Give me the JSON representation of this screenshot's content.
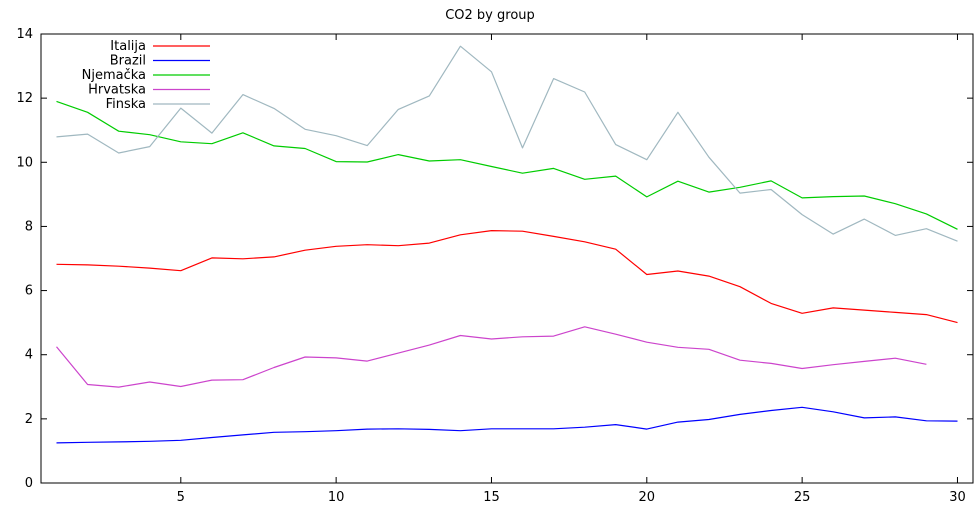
{
  "chart_data": {
    "type": "line",
    "title": "CO2 by group",
    "xlabel": "",
    "ylabel": "",
    "xlim": [
      0.5,
      30.5
    ],
    "ylim": [
      0,
      14
    ],
    "x_ticks": [
      "5",
      "10",
      "15",
      "20",
      "25",
      "30"
    ],
    "y_ticks": [
      "0",
      "2",
      "4",
      "6",
      "8",
      "10",
      "12",
      "14"
    ],
    "grid": false,
    "legend_position": "top-left",
    "x": [
      1,
      2,
      3,
      4,
      5,
      6,
      7,
      8,
      9,
      10,
      11,
      12,
      13,
      14,
      15,
      16,
      17,
      18,
      19,
      20,
      21,
      22,
      23,
      24,
      25,
      26,
      27,
      28,
      29,
      30
    ],
    "series": [
      {
        "name": "Italija",
        "color": "#ff0000",
        "values": [
          6.82,
          6.8,
          6.76,
          6.7,
          6.62,
          7.02,
          6.99,
          7.05,
          7.26,
          7.38,
          7.43,
          7.4,
          7.48,
          7.74,
          7.87,
          7.85,
          7.69,
          7.52,
          7.29,
          6.5,
          6.61,
          6.45,
          6.12,
          5.6,
          5.29,
          5.46,
          5.39,
          5.32,
          5.25,
          5.0
        ]
      },
      {
        "name": "Brazil",
        "color": "#0000ff",
        "values": [
          1.25,
          1.27,
          1.28,
          1.3,
          1.33,
          1.42,
          1.5,
          1.58,
          1.6,
          1.63,
          1.68,
          1.69,
          1.67,
          1.63,
          1.69,
          1.69,
          1.69,
          1.74,
          1.82,
          1.68,
          1.9,
          1.98,
          2.14,
          2.26,
          2.36,
          2.22,
          2.03,
          2.06,
          1.94,
          1.93
        ]
      },
      {
        "name": "Njemačka",
        "color": "#00cc00",
        "values": [
          11.9,
          11.56,
          10.97,
          10.86,
          10.64,
          10.58,
          10.92,
          10.51,
          10.43,
          10.02,
          10.01,
          10.24,
          10.04,
          10.08,
          9.87,
          9.66,
          9.81,
          9.47,
          9.57,
          8.92,
          9.41,
          9.07,
          9.22,
          9.42,
          8.89,
          8.93,
          8.95,
          8.71,
          8.39,
          7.91
        ]
      },
      {
        "name": "Hrvatska",
        "color": "#cc44cc",
        "values": [
          4.25,
          3.07,
          2.99,
          3.15,
          3.01,
          3.21,
          3.22,
          3.6,
          3.93,
          3.9,
          3.8,
          4.05,
          4.3,
          4.6,
          4.49,
          4.56,
          4.58,
          4.87,
          4.64,
          4.39,
          4.23,
          4.17,
          3.83,
          3.73,
          3.57,
          3.69,
          3.79,
          3.89,
          3.7,
          null
        ]
      },
      {
        "name": "Finska",
        "color": "#a0b8c0",
        "values": [
          10.79,
          10.88,
          10.29,
          10.49,
          11.69,
          10.91,
          12.11,
          11.68,
          11.03,
          10.83,
          10.52,
          11.65,
          12.07,
          13.62,
          12.82,
          10.45,
          12.61,
          12.19,
          10.55,
          10.08,
          11.56,
          10.16,
          9.04,
          9.15,
          8.37,
          7.76,
          8.23,
          7.72,
          7.93,
          7.54
        ]
      }
    ]
  }
}
